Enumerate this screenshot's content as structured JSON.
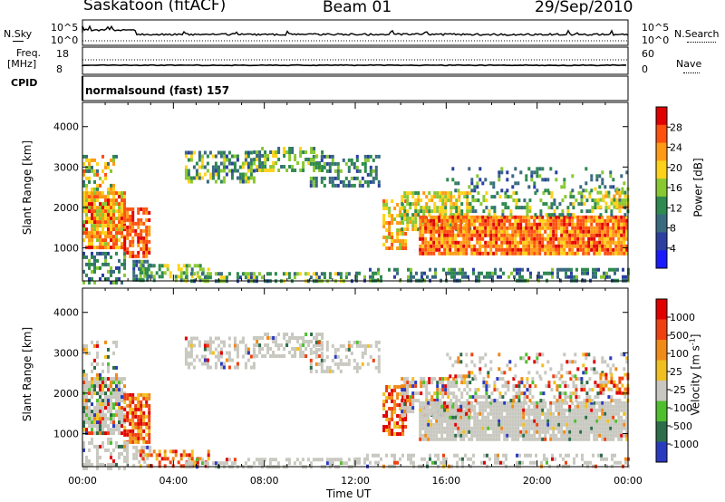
{
  "header": {
    "station": "Saskatoon (fitACF)",
    "beam": "Beam 01",
    "date": "29/Sep/2010"
  },
  "noise_panel": {
    "left_label": "N.Sky",
    "right_label": "N.Search",
    "left_ticks": [
      "10^5",
      "10^0"
    ],
    "right_ticks": [
      "10^5",
      "10^0"
    ]
  },
  "freq_panel": {
    "left_label_1": "Freq.",
    "left_label_2": "[MHz]",
    "right_label": "Nave",
    "left_ticks": [
      "18",
      "8"
    ],
    "right_ticks": [
      "60",
      "0"
    ]
  },
  "cpid_panel": {
    "label": "CPID",
    "text": "normalsound (fast) 157"
  },
  "chart_data": [
    {
      "type": "heatmap",
      "quantity": "Power",
      "ylabel": "Slant Range [km]",
      "ylim": [
        180,
        4600
      ],
      "yticks": [
        "1000",
        "2000",
        "3000",
        "4000"
      ],
      "colorbar_label": "Power [dB]",
      "colorbar_ticks": [
        "4",
        "8",
        "12",
        "16",
        "20",
        "24",
        "28"
      ]
    },
    {
      "type": "heatmap",
      "quantity": "Velocity",
      "ylabel": "Slant Range [km]",
      "ylim": [
        180,
        4600
      ],
      "yticks": [
        "1000",
        "2000",
        "3000",
        "4000"
      ],
      "colorbar_label": "Velocity [m s^-1]",
      "colorbar_ticks": [
        "1000",
        "500",
        "100",
        "25",
        "-25",
        "-100",
        "-500",
        "-1000"
      ]
    }
  ],
  "x_axis": {
    "label": "Time UT",
    "ticks": [
      "00:00",
      "04:00",
      "08:00",
      "12:00",
      "16:00",
      "20:00",
      "00:00"
    ]
  },
  "colors": {
    "power_scale": [
      "#1a1aff",
      "#2a3fa0",
      "#3a6a80",
      "#2e8a4e",
      "#8ac832",
      "#ffd21a",
      "#ff9a14",
      "#ff5010",
      "#e00000"
    ],
    "velocity_scale": [
      "#2a3ac0",
      "#2d6d4a",
      "#4fbf2e",
      "#c8c8c0",
      "#f0c020",
      "#f08a18",
      "#f04010",
      "#e00000"
    ],
    "ground_scatter": "#c8c8c0"
  }
}
